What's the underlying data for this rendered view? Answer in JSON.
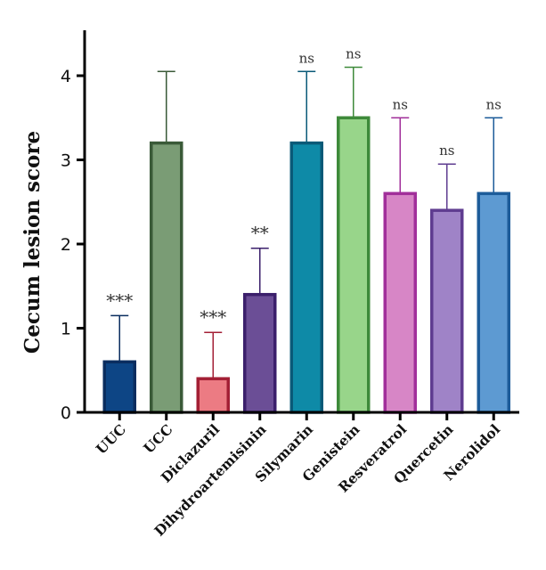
{
  "chart_data": {
    "type": "bar",
    "title": "",
    "xlabel": "",
    "ylabel": "Cecum lesion score",
    "ylim": [
      0,
      4.5
    ],
    "yticks": [
      0,
      1,
      2,
      3,
      4
    ],
    "categories": [
      "UUC",
      "UCC",
      "Diclazuril",
      "Dihydroartemisinin",
      "Silymarin",
      "Genistein",
      "Resveratrol",
      "Quercetin",
      "Nerolidol"
    ],
    "values": [
      0.6,
      3.2,
      0.4,
      1.4,
      3.2,
      3.5,
      2.6,
      2.4,
      2.6
    ],
    "errors": [
      0.55,
      0.85,
      0.55,
      0.55,
      0.85,
      0.6,
      0.9,
      0.55,
      0.9
    ],
    "significance": [
      "***",
      "",
      "***",
      "**",
      "ns",
      "ns",
      "ns",
      "ns",
      "ns"
    ],
    "fill_colors": [
      "#0d4585",
      "#7a9c75",
      "#ec7b83",
      "#6b4e96",
      "#0e8aa7",
      "#98d58a",
      "#d786c6",
      "#9f83c7",
      "#5d9ad2"
    ],
    "edge_colors": [
      "#0a2d5f",
      "#3a5a38",
      "#a31f35",
      "#3b1f6b",
      "#0a5a78",
      "#3e8a3a",
      "#a12f9a",
      "#5f3c90",
      "#1d5c9a"
    ],
    "grid": false,
    "legend": "none"
  }
}
